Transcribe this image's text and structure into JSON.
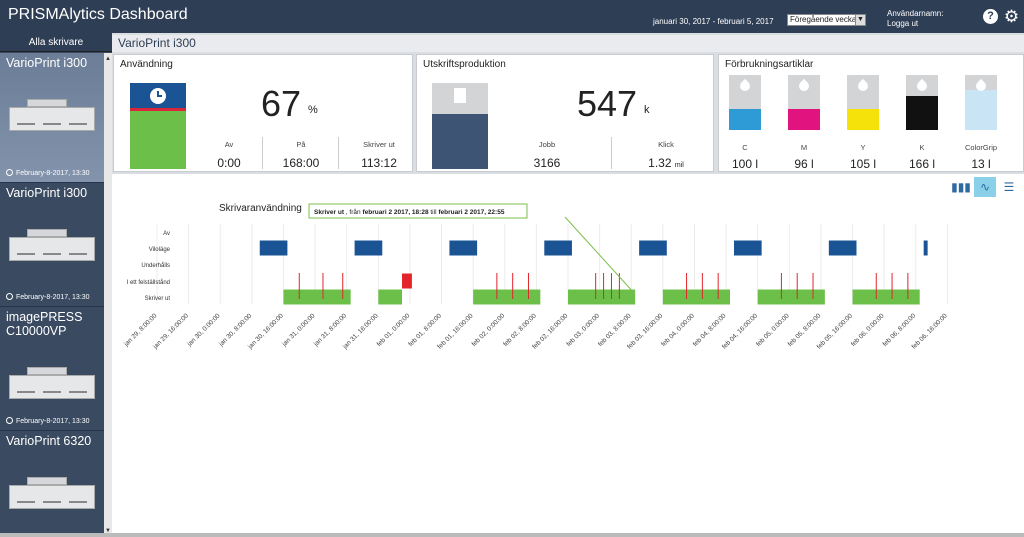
{
  "header": {
    "title": "PRISMAlytics Dashboard",
    "date_range": "januari 30, 2017 - februari 5, 2017",
    "period_select": "Föregående vecka",
    "user_label": "Användarnamn:",
    "logout": "Logga ut",
    "help_icon": "?"
  },
  "sidebar": {
    "all_printers": "Alla skrivare",
    "printers": [
      {
        "name": "VarioPrint i300",
        "date": "February-8-2017, 13:30",
        "active": true
      },
      {
        "name": "VarioPrint i300",
        "date": "February-8-2017, 13:30",
        "active": false
      },
      {
        "name": "imagePRESS C10000VP",
        "date": "February-8-2017, 13:30",
        "active": false
      },
      {
        "name": "VarioPrint 6320",
        "date": "",
        "active": false
      }
    ]
  },
  "main": {
    "title": "VarioPrint i300",
    "usage": {
      "title": "Användning",
      "value": "67",
      "unit": "%",
      "gauge_fraction": 0.67,
      "colors": {
        "top": "#1a5494",
        "fill": "#6cc04a",
        "marker": "#d9263a"
      },
      "stats": [
        {
          "label": "Av",
          "value": "0:00"
        },
        {
          "label": "På",
          "value": "168:00"
        },
        {
          "label": "Skriver ut",
          "value": "113:12"
        }
      ]
    },
    "production": {
      "title": "Utskriftsproduktion",
      "value": "547",
      "unit": "k",
      "gauge_fraction": 0.64,
      "stats": [
        {
          "label": "Jobb",
          "value": "3166",
          "unit": ""
        },
        {
          "label": "Klick",
          "value": "1.32",
          "unit": "mil"
        }
      ]
    },
    "consumables": {
      "title": "Förbrukningsartiklar",
      "inks": [
        {
          "label": "C",
          "value": "100 l",
          "color": "#2e9ad6"
        },
        {
          "label": "M",
          "value": "96 l",
          "color": "#e0137f"
        },
        {
          "label": "Y",
          "value": "105 l",
          "color": "#f4e20a"
        },
        {
          "label": "K",
          "value": "166 l",
          "color": "#111111"
        },
        {
          "label": "ColorGrip",
          "value": "13 l",
          "color": "#c9e4f4"
        }
      ]
    },
    "chart": {
      "view_icons": [
        "bar-chart-icon",
        "line-chart-icon",
        "list-icon"
      ]
    }
  },
  "chart_data": {
    "type": "timeline",
    "title": "Skrivaranvändning",
    "rows": [
      "Av",
      "Viloläge",
      "Underhålls",
      "I ett felställstånd",
      "Skriver ut"
    ],
    "x_ticks": [
      "jan 29, 8:00:00",
      "jan 29, 16:00:00",
      "jan 30, 0:00:00",
      "jan 30, 8:00:00",
      "jan 30, 16:00:00",
      "jan 31, 0:00:00",
      "jan 31, 8:00:00",
      "jan 31, 16:00:00",
      "feb 01, 0:00:00",
      "feb 01, 8:00:00",
      "feb 01, 16:00:00",
      "feb 02, 0:00:00",
      "feb 02, 8:00:00",
      "feb 02, 16:00:00",
      "feb 03, 0:00:00",
      "feb 03, 8:00:00",
      "feb 03, 16:00:00",
      "feb 04, 0:00:00",
      "feb 04, 8:00:00",
      "feb 04, 16:00:00",
      "feb 05, 0:00:00",
      "feb 05, 8:00:00",
      "feb 05, 16:00:00",
      "feb 06, 0:00:00",
      "feb 06, 8:00:00",
      "feb 06, 16:00:00"
    ],
    "x_start_hours": 0,
    "x_end_hours": 208,
    "segments": [
      {
        "row": "Viloläge",
        "start": 26,
        "end": 33,
        "color": "#1a5494"
      },
      {
        "row": "Viloläge",
        "start": 50,
        "end": 57,
        "color": "#1a5494"
      },
      {
        "row": "Viloläge",
        "start": 74,
        "end": 81,
        "color": "#1a5494"
      },
      {
        "row": "Viloläge",
        "start": 98,
        "end": 105,
        "color": "#1a5494"
      },
      {
        "row": "Viloläge",
        "start": 122,
        "end": 129,
        "color": "#1a5494"
      },
      {
        "row": "Viloläge",
        "start": 146,
        "end": 153,
        "color": "#1a5494"
      },
      {
        "row": "Viloläge",
        "start": 170,
        "end": 177,
        "color": "#1a5494"
      },
      {
        "row": "Viloläge",
        "start": 194,
        "end": 195,
        "color": "#1a5494"
      },
      {
        "row": "I ett felställstånd",
        "start": 62,
        "end": 64.5,
        "color": "#e3242b"
      },
      {
        "row": "Skriver ut",
        "start": 32,
        "end": 49,
        "color": "#6cc04a"
      },
      {
        "row": "Skriver ut",
        "start": 56,
        "end": 62,
        "color": "#6cc04a"
      },
      {
        "row": "Skriver ut",
        "start": 80,
        "end": 97,
        "color": "#6cc04a"
      },
      {
        "row": "Skriver ut",
        "start": 104,
        "end": 121,
        "color": "#6cc04a"
      },
      {
        "row": "Skriver ut",
        "start": 128,
        "end": 145,
        "color": "#6cc04a"
      },
      {
        "row": "Skriver ut",
        "start": 152,
        "end": 169,
        "color": "#6cc04a"
      },
      {
        "row": "Skriver ut",
        "start": 176,
        "end": 193,
        "color": "#6cc04a"
      }
    ],
    "error_ticks": [
      36,
      42,
      47,
      86,
      90,
      94,
      111,
      113,
      115,
      117,
      134,
      138,
      142,
      158,
      162,
      166,
      182,
      186,
      190
    ],
    "tooltip": {
      "status": "Skriver ut",
      "text1": ", från",
      "from": "februari 2 2017, 18:28",
      "text2": "till",
      "to": "februari 2 2017, 22:55"
    }
  }
}
